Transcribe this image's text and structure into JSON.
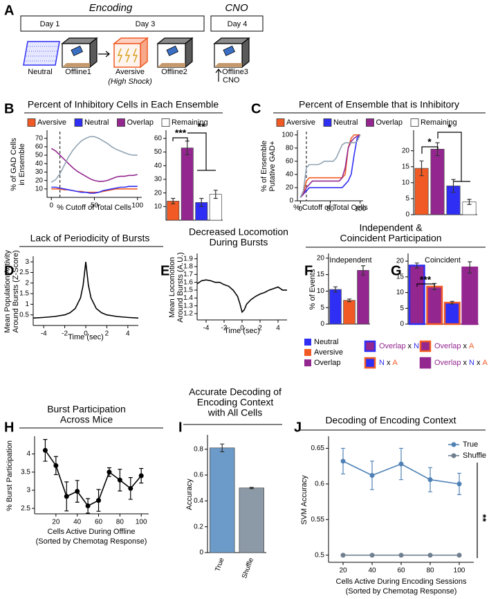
{
  "diagram": {
    "label": "A",
    "phases": [
      "Encoding",
      "CNO"
    ],
    "days": [
      "Day 1",
      "Day 3",
      "Day 4"
    ],
    "sessions": [
      "Neutral",
      "Offline1",
      "Aversive",
      "Offline2",
      "Offline3"
    ],
    "shock_note": "(High Shock)",
    "injection": "CNO"
  },
  "chart_data": [
    {
      "type": "line",
      "label": "B",
      "title": "Percent of Inhibitory Cells in Each Ensemble",
      "x": [
        0,
        5,
        10,
        15,
        20,
        25,
        30,
        35,
        40,
        45,
        50,
        55,
        60,
        65,
        70,
        75,
        80,
        85,
        90,
        95,
        100
      ],
      "xlim": [
        -5,
        105
      ],
      "xticks": [
        0,
        50,
        100
      ],
      "ylim": [
        0,
        78
      ],
      "yticks": [
        10,
        20,
        30,
        40,
        50,
        60,
        70
      ],
      "xlabel": "% Cutoff of Total Cells",
      "ylabel": [
        "% of GAD Cells",
        "in Ensemble"
      ],
      "vline": 10,
      "series": [
        {
          "name": "Aversive",
          "color": "#f15a24",
          "legend_color": "#f15a24",
          "values": [
            10,
            10,
            10,
            9,
            9,
            8,
            7,
            7,
            6,
            6,
            6,
            6,
            7,
            8,
            9,
            10,
            10,
            10,
            10,
            10,
            10
          ]
        },
        {
          "name": "Neutral",
          "color": "#2e2ef5",
          "legend_color": "#2e2ef5",
          "values": [
            12,
            12,
            11,
            10,
            9,
            8,
            7,
            6,
            6,
            5,
            5,
            6,
            8,
            9,
            10,
            11,
            12,
            12,
            13,
            13,
            13
          ]
        },
        {
          "name": "Overlap",
          "color": "#93278f",
          "legend_color": "#93278f",
          "values": [
            58,
            55,
            50,
            45,
            40,
            35,
            31,
            28,
            25,
            22,
            20,
            19,
            19,
            20,
            22,
            24,
            25,
            25,
            26,
            26,
            27
          ]
        },
        {
          "name": "Remaining",
          "color": "#8fa3b3",
          "legend_color": "#ffffff",
          "values": [
            18,
            21,
            28,
            38,
            48,
            56,
            62,
            67,
            70,
            72,
            72,
            70,
            67,
            64,
            60,
            57,
            55,
            53,
            51,
            50,
            50
          ]
        }
      ]
    },
    {
      "type": "bar",
      "values": [
        14,
        53,
        13,
        19
      ],
      "errors": [
        2,
        5,
        3,
        3
      ],
      "colors": [
        "#f15a24",
        "#93278f",
        "#2e2ef5",
        "#ffffff"
      ],
      "ylim": [
        0,
        65
      ],
      "yticks": [
        10,
        20,
        30,
        40,
        50,
        60
      ],
      "annotations": [
        "***",
        "**"
      ]
    },
    {
      "type": "line",
      "label": "C",
      "title": "Percent of Ensemble that is Inhibitory",
      "x": [
        0,
        5,
        10,
        15,
        20,
        25,
        30,
        35,
        40,
        45,
        50,
        55,
        60,
        65,
        70,
        75,
        80,
        85,
        90,
        95,
        100
      ],
      "xlim": [
        -5,
        105
      ],
      "xticks": [
        0,
        50,
        100
      ],
      "ylim": [
        0,
        105
      ],
      "yticks": [
        0,
        20,
        40,
        60,
        80,
        100
      ],
      "xlabel": "% Cutoff of Total Cells",
      "ylabel": [
        "% of Ensemble",
        "Putative GAD+"
      ],
      "vline": 10,
      "series": [
        {
          "name": "Aversive",
          "color": "#f15a24",
          "legend_color": "#f15a24",
          "values": [
            5,
            12,
            30,
            35,
            35,
            35,
            35,
            35,
            35,
            35,
            35,
            35,
            35,
            35,
            35,
            40,
            80,
            95,
            100,
            100,
            100
          ]
        },
        {
          "name": "Neutral",
          "color": "#2e2ef5",
          "legend_color": "#2e2ef5",
          "values": [
            5,
            10,
            15,
            20,
            20,
            20,
            20,
            20,
            20,
            20,
            20,
            20,
            20,
            20,
            20,
            25,
            30,
            40,
            70,
            95,
            100
          ]
        },
        {
          "name": "Overlap",
          "color": "#93278f",
          "legend_color": "#93278f",
          "values": [
            5,
            10,
            20,
            25,
            30,
            30,
            30,
            30,
            30,
            30,
            30,
            30,
            30,
            30,
            35,
            50,
            80,
            90,
            95,
            98,
            100
          ]
        },
        {
          "name": "Remaining",
          "color": "#8fa3b3",
          "legend_color": "#ffffff",
          "values": [
            5,
            15,
            50,
            55,
            55,
            55,
            55,
            57,
            60,
            60,
            60,
            60,
            65,
            75,
            85,
            88,
            88,
            88,
            88,
            90,
            100
          ]
        }
      ]
    },
    {
      "type": "bar",
      "values": [
        14.5,
        20.5,
        9,
        4
      ],
      "errors": [
        2.3,
        2,
        2,
        0.8
      ],
      "colors": [
        "#f15a24",
        "#93278f",
        "#2e2ef5",
        "#ffffff"
      ],
      "ylim": [
        0,
        26
      ],
      "yticks": [
        0,
        5,
        10,
        15,
        20
      ],
      "annotations": [
        "*",
        "*"
      ]
    },
    {
      "type": "line",
      "label": "D",
      "title": "Lack of Periodicity of Bursts",
      "x": [
        -5,
        -4,
        -3,
        -2,
        -1.5,
        -1,
        -0.5,
        -0.25,
        0,
        0.25,
        0.5,
        1,
        1.5,
        2,
        3,
        4,
        5
      ],
      "values": [
        0.35,
        0.38,
        0.42,
        0.5,
        0.6,
        0.8,
        1.3,
        1.9,
        3.0,
        1.9,
        1.3,
        0.8,
        0.6,
        0.5,
        0.42,
        0.38,
        0.35
      ],
      "color": "#000000",
      "xlim": [
        -5,
        5
      ],
      "xticks": [
        -4,
        -2,
        0,
        2,
        4
      ],
      "ylim": [
        0,
        3.2
      ],
      "yticks": [
        0.5,
        1,
        1.5,
        2,
        2.5,
        3
      ],
      "xlabel": "Time (sec)",
      "ylabel": [
        "Mean Population Activity",
        "Around Bursts (Z-Score)"
      ]
    },
    {
      "type": "line",
      "label": "E",
      "title": [
        "Decreased Locomotion",
        "During Bursts"
      ],
      "x": [
        -5,
        -4.5,
        -4,
        -3.5,
        -3,
        -2.5,
        -2,
        -1.5,
        -1,
        -0.5,
        -0.25,
        0,
        0.25,
        0.5,
        1,
        1.5,
        2,
        2.5,
        3,
        3.5,
        4,
        4.5,
        5
      ],
      "values": [
        1.58,
        1.62,
        1.63,
        1.62,
        1.6,
        1.6,
        1.57,
        1.55,
        1.5,
        1.42,
        1.33,
        1.22,
        1.25,
        1.32,
        1.38,
        1.42,
        1.45,
        1.47,
        1.5,
        1.52,
        1.54,
        1.5,
        1.5
      ],
      "color": "#000000",
      "xlim": [
        -5,
        5
      ],
      "xticks": [
        -4,
        -2,
        0,
        2,
        4
      ],
      "ylim": [
        1.12,
        1.95
      ],
      "yticks": [
        1.2,
        1.3,
        1.4,
        1.5,
        1.6,
        1.7,
        1.8,
        1.9
      ],
      "xlabel": "Time (sec)",
      "ylabel": [
        "Mean Locomotion",
        "Around Bursts (A.U.)"
      ]
    },
    {
      "type": "bar",
      "label": "F",
      "title": [
        "Independent &",
        "Coincident Participation"
      ],
      "subtitle": "Independent",
      "categories": [
        "Neutral",
        "Aversive",
        "Overlap"
      ],
      "values": [
        10.5,
        7.2,
        16.3
      ],
      "errors": [
        0.8,
        0.4,
        1.4
      ],
      "colors": [
        "#2e2ef5",
        "#f15a24",
        "#93278f"
      ],
      "ylim": [
        0,
        21
      ],
      "yticks": [
        0,
        5,
        10,
        15,
        20
      ],
      "ylabel": "% of Events"
    },
    {
      "type": "bar",
      "label": "G",
      "subtitle": "Coincident",
      "categories": [
        [
          "Overlap",
          "x",
          "N"
        ],
        [
          "Overlap",
          "x",
          "A"
        ],
        [
          "N",
          "x",
          "A"
        ],
        [
          "Overlap",
          "x",
          "N",
          "x",
          "A"
        ]
      ],
      "category_colors": [
        [
          "#93278f",
          "#000000",
          "#2e2ef5"
        ],
        [
          "#93278f",
          "#000000",
          "#f15a24"
        ],
        [
          "#2e2ef5",
          "#000000",
          "#f15a24"
        ],
        [
          "#93278f",
          "#000000",
          "#2e2ef5",
          "#000000",
          "#f15a24"
        ]
      ],
      "values": [
        18.6,
        11.9,
        6.8,
        18
      ],
      "errors": [
        0.8,
        1,
        0.4,
        1.8
      ],
      "colors": [
        "#93278f",
        "#93278f",
        "#2e2ef5",
        "#93278f"
      ],
      "edge_colors": [
        "#2e2ef5",
        "#f15a24",
        "#f15a24",
        "#93278f"
      ],
      "ylim": [
        0,
        22
      ],
      "yticks": [
        0,
        5,
        10,
        15,
        20
      ],
      "annotations": [
        "***"
      ]
    },
    {
      "type": "line",
      "label": "H",
      "title": [
        "Burst Participation",
        "Across Mice"
      ],
      "x": [
        10,
        20,
        30,
        40,
        50,
        60,
        70,
        80,
        90,
        100
      ],
      "values": [
        4.1,
        3.68,
        2.83,
        2.97,
        2.57,
        2.72,
        3.5,
        3.28,
        3.05,
        3.4
      ],
      "errors": [
        0.3,
        0.25,
        0.4,
        0.3,
        0.2,
        0.3,
        0.12,
        0.3,
        0.3,
        0.2
      ],
      "color": "#000000",
      "markers": true,
      "xlim": [
        0,
        107
      ],
      "xticks": [
        20,
        40,
        60,
        80,
        100
      ],
      "ylim": [
        2.35,
        4.45
      ],
      "yticks": [
        2.5,
        3,
        3.5,
        4
      ],
      "xlabel": [
        "Cells Active During Offline",
        "(Sorted by Chemotag Response)"
      ],
      "ylabel": "% Burst Participation"
    },
    {
      "type": "bar",
      "label": "I",
      "title": [
        "Accurate Decoding of",
        "Encoding Context",
        "with All Cells"
      ],
      "categories": [
        "True",
        "Shuffle"
      ],
      "values": [
        0.81,
        0.5
      ],
      "errors": [
        0.03,
        0.005
      ],
      "colors": [
        "#6c9bc9",
        "#8c99a6"
      ],
      "ylim": [
        0,
        0.9
      ],
      "yticks": [
        0,
        0.2,
        0.4,
        0.6,
        0.8
      ],
      "ylabel": "Accuracy"
    },
    {
      "type": "line",
      "label": "J",
      "title": "Decoding of Encoding Context",
      "x": [
        20,
        40,
        60,
        80,
        100
      ],
      "xlim": [
        10,
        110
      ],
      "xticks": [
        20,
        40,
        60,
        80,
        100
      ],
      "ylim": [
        0.49,
        0.665
      ],
      "yticks": [
        0.5,
        0.55,
        0.6,
        0.65
      ],
      "markers": true,
      "legend": "upper right",
      "xlabel": [
        "Cells Active During Encoding Sessions",
        "(Sorted by Chemotag Response)"
      ],
      "ylabel": "SVM Accuracy",
      "annotations": [
        "**"
      ],
      "series": [
        {
          "name": "True",
          "color": "#4f81b5",
          "values": [
            0.632,
            0.612,
            0.628,
            0.606,
            0.6
          ],
          "errors": [
            0.018,
            0.02,
            0.022,
            0.017,
            0.015
          ]
        },
        {
          "name": "Shuffle",
          "color": "#6f7f8f",
          "values": [
            0.5,
            0.5,
            0.5,
            0.5,
            0.5
          ]
        }
      ]
    }
  ]
}
